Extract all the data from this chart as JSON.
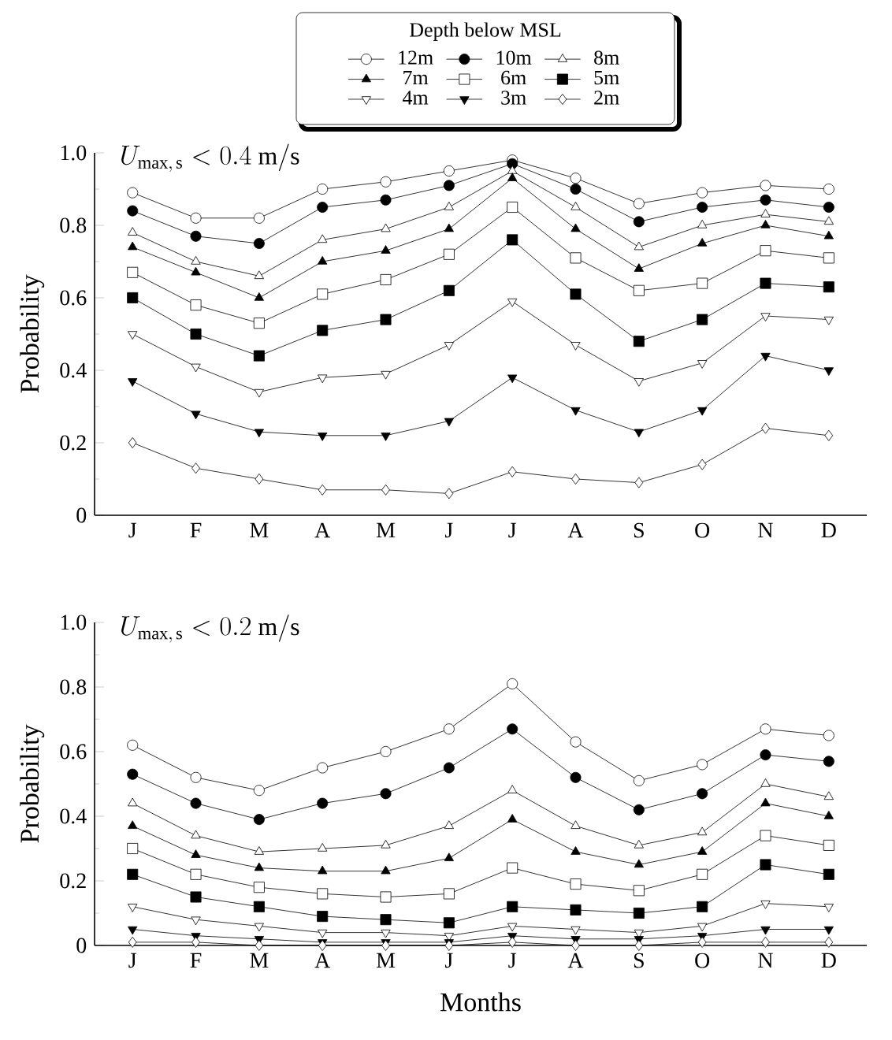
{
  "chart_data": [
    {
      "type": "line",
      "ylabel": "Probability",
      "legend_title": "Depth below MSL",
      "legend": "top",
      "annotations": [
        "U_{\\mathrm{max,\\,s}} < 0.4\\ \\mathrm{m/s}"
      ],
      "categories": [
        "J",
        "F",
        "M",
        "A",
        "M",
        "J",
        "J",
        "A",
        "S",
        "O",
        "N",
        "D"
      ],
      "ylim": [
        0,
        1.0
      ],
      "yticks": [
        {
          "value": 0,
          "label": "0"
        },
        {
          "value": 0.2,
          "label": "0.2"
        },
        {
          "value": 0.4,
          "label": "0.4"
        },
        {
          "value": 0.6,
          "label": "0.6"
        },
        {
          "value": 0.8,
          "label": "0.8"
        },
        {
          "value": 1.0,
          "label": "1.0"
        }
      ],
      "series": [
        {
          "name": "12m",
          "color": "#000000",
          "marker": "circle",
          "values": [
            0.89,
            0.82,
            0.82,
            0.9,
            0.92,
            0.95,
            0.98,
            0.93,
            0.86,
            0.89,
            0.91,
            0.9
          ]
        },
        {
          "name": "10m",
          "color": "#000000",
          "marker": "circle",
          "values": [
            0.84,
            0.77,
            0.75,
            0.85,
            0.87,
            0.91,
            0.97,
            0.9,
            0.81,
            0.85,
            0.87,
            0.85
          ]
        },
        {
          "name": "8m",
          "color": "#000000",
          "marker": "triangle",
          "values": [
            0.78,
            0.7,
            0.66,
            0.76,
            0.79,
            0.85,
            0.95,
            0.85,
            0.74,
            0.8,
            0.83,
            0.81
          ]
        },
        {
          "name": "7m",
          "color": "#000000",
          "marker": "triangle",
          "values": [
            0.74,
            0.67,
            0.6,
            0.7,
            0.73,
            0.79,
            0.93,
            0.79,
            0.68,
            0.75,
            0.8,
            0.77
          ]
        },
        {
          "name": "6m",
          "color": "#000000",
          "marker": "square",
          "values": [
            0.67,
            0.58,
            0.53,
            0.61,
            0.65,
            0.72,
            0.85,
            0.71,
            0.62,
            0.64,
            0.73,
            0.71
          ]
        },
        {
          "name": "5m",
          "color": "#000000",
          "marker": "square",
          "values": [
            0.6,
            0.5,
            0.44,
            0.51,
            0.54,
            0.62,
            0.76,
            0.61,
            0.48,
            0.54,
            0.64,
            0.63
          ]
        },
        {
          "name": "4m",
          "color": "#000000",
          "marker": "triangle",
          "values": [
            0.5,
            0.41,
            0.34,
            0.38,
            0.39,
            0.47,
            0.59,
            0.47,
            0.37,
            0.42,
            0.55,
            0.54
          ]
        },
        {
          "name": "3m",
          "color": "#000000",
          "marker": "triangle",
          "values": [
            0.37,
            0.28,
            0.23,
            0.22,
            0.22,
            0.26,
            0.38,
            0.29,
            0.23,
            0.29,
            0.44,
            0.4
          ]
        },
        {
          "name": "2m",
          "color": "#000000",
          "marker": "diamond",
          "values": [
            0.2,
            0.13,
            0.1,
            0.07,
            0.07,
            0.06,
            0.12,
            0.1,
            0.09,
            0.14,
            0.24,
            0.22
          ]
        }
      ]
    },
    {
      "type": "line",
      "ylabel": "Probability",
      "xlabel": "Months",
      "annotations": [
        "U_{\\mathrm{max,\\,s}} < 0.2\\ \\mathrm{m/s}"
      ],
      "categories": [
        "J",
        "F",
        "M",
        "A",
        "M",
        "J",
        "J",
        "A",
        "S",
        "O",
        "N",
        "D"
      ],
      "ylim": [
        0,
        1.0
      ],
      "yticks": [
        {
          "value": 0,
          "label": "0"
        },
        {
          "value": 0.2,
          "label": "0.2"
        },
        {
          "value": 0.4,
          "label": "0.4"
        },
        {
          "value": 0.6,
          "label": "0.6"
        },
        {
          "value": 0.8,
          "label": "0.8"
        },
        {
          "value": 1.0,
          "label": "1.0"
        }
      ],
      "series": [
        {
          "color": "#000000",
          "marker": "circle",
          "values": [
            0.62,
            0.52,
            0.48,
            0.55,
            0.6,
            0.67,
            0.81,
            0.63,
            0.51,
            0.56,
            0.67,
            0.65
          ]
        },
        {
          "color": "#000000",
          "marker": "circle",
          "values": [
            0.53,
            0.44,
            0.39,
            0.44,
            0.47,
            0.55,
            0.67,
            0.52,
            0.42,
            0.47,
            0.59,
            0.57
          ]
        },
        {
          "color": "#000000",
          "marker": "triangle",
          "values": [
            0.44,
            0.34,
            0.29,
            0.3,
            0.31,
            0.37,
            0.48,
            0.37,
            0.31,
            0.35,
            0.5,
            0.46
          ]
        },
        {
          "color": "#000000",
          "marker": "triangle",
          "values": [
            0.37,
            0.28,
            0.24,
            0.23,
            0.23,
            0.27,
            0.39,
            0.29,
            0.25,
            0.29,
            0.44,
            0.4
          ]
        },
        {
          "color": "#000000",
          "marker": "square",
          "values": [
            0.3,
            0.22,
            0.18,
            0.16,
            0.15,
            0.16,
            0.24,
            0.19,
            0.17,
            0.22,
            0.34,
            0.31
          ]
        },
        {
          "color": "#000000",
          "marker": "square",
          "values": [
            0.22,
            0.15,
            0.12,
            0.09,
            0.08,
            0.07,
            0.12,
            0.11,
            0.1,
            0.12,
            0.25,
            0.22
          ]
        },
        {
          "color": "#000000",
          "marker": "triangle",
          "values": [
            0.12,
            0.08,
            0.06,
            0.04,
            0.04,
            0.03,
            0.06,
            0.05,
            0.04,
            0.06,
            0.13,
            0.12
          ]
        },
        {
          "color": "#000000",
          "marker": "triangle",
          "values": [
            0.05,
            0.03,
            0.02,
            0.01,
            0.01,
            0.01,
            0.03,
            0.02,
            0.02,
            0.03,
            0.05,
            0.05
          ]
        },
        {
          "color": "#000000",
          "marker": "diamond",
          "values": [
            0.01,
            0.01,
            0,
            0,
            0,
            0,
            0.01,
            0,
            0,
            0.01,
            0.01,
            0.01
          ]
        }
      ]
    }
  ]
}
